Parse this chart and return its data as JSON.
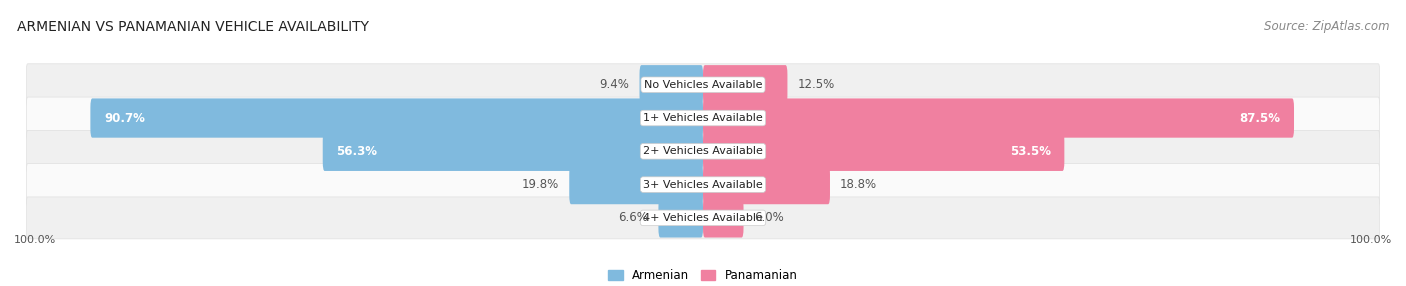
{
  "title": "ARMENIAN VS PANAMANIAN VEHICLE AVAILABILITY",
  "source": "Source: ZipAtlas.com",
  "categories": [
    "No Vehicles Available",
    "1+ Vehicles Available",
    "2+ Vehicles Available",
    "3+ Vehicles Available",
    "4+ Vehicles Available"
  ],
  "armenian_values": [
    9.4,
    90.7,
    56.3,
    19.8,
    6.6
  ],
  "panamanian_values": [
    12.5,
    87.5,
    53.5,
    18.8,
    6.0
  ],
  "armenian_color": "#80BADE",
  "panamanian_color": "#F080A0",
  "armenian_color_light": "#A8CCEA",
  "panamanian_color_light": "#F5A8C0",
  "bg_color": "#FFFFFF",
  "row_colors_odd": "#F0F0F0",
  "row_colors_even": "#FAFAFA",
  "title_fontsize": 10,
  "source_fontsize": 8.5,
  "label_fontsize": 8.5,
  "category_fontsize": 8,
  "legend_fontsize": 8.5,
  "footer_fontsize": 8
}
